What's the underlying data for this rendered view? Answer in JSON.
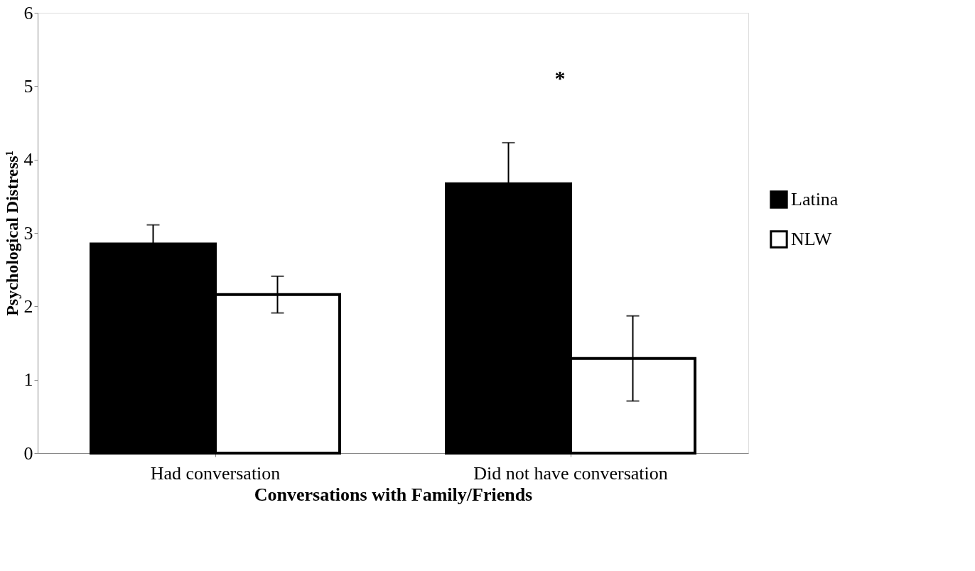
{
  "chart_data": {
    "type": "bar",
    "xlabel": "Conversations with Family/Friends",
    "ylabel": "Psychological Distress¹",
    "categories": [
      "Had conversation",
      "Did not have conversation"
    ],
    "series": [
      {
        "name": "Latina",
        "color": "#000000",
        "values": [
          2.85,
          3.67
        ],
        "errors": [
          0.26,
          0.56
        ]
      },
      {
        "name": "NLW",
        "color": "#ffffff",
        "values": [
          2.16,
          1.29
        ],
        "errors": [
          0.25,
          0.58
        ]
      }
    ],
    "ylim": [
      0,
      6
    ],
    "yticks": [
      0,
      1,
      2,
      3,
      4,
      5,
      6
    ],
    "grid": false,
    "legend": "right",
    "annotations": [
      "*"
    ]
  }
}
